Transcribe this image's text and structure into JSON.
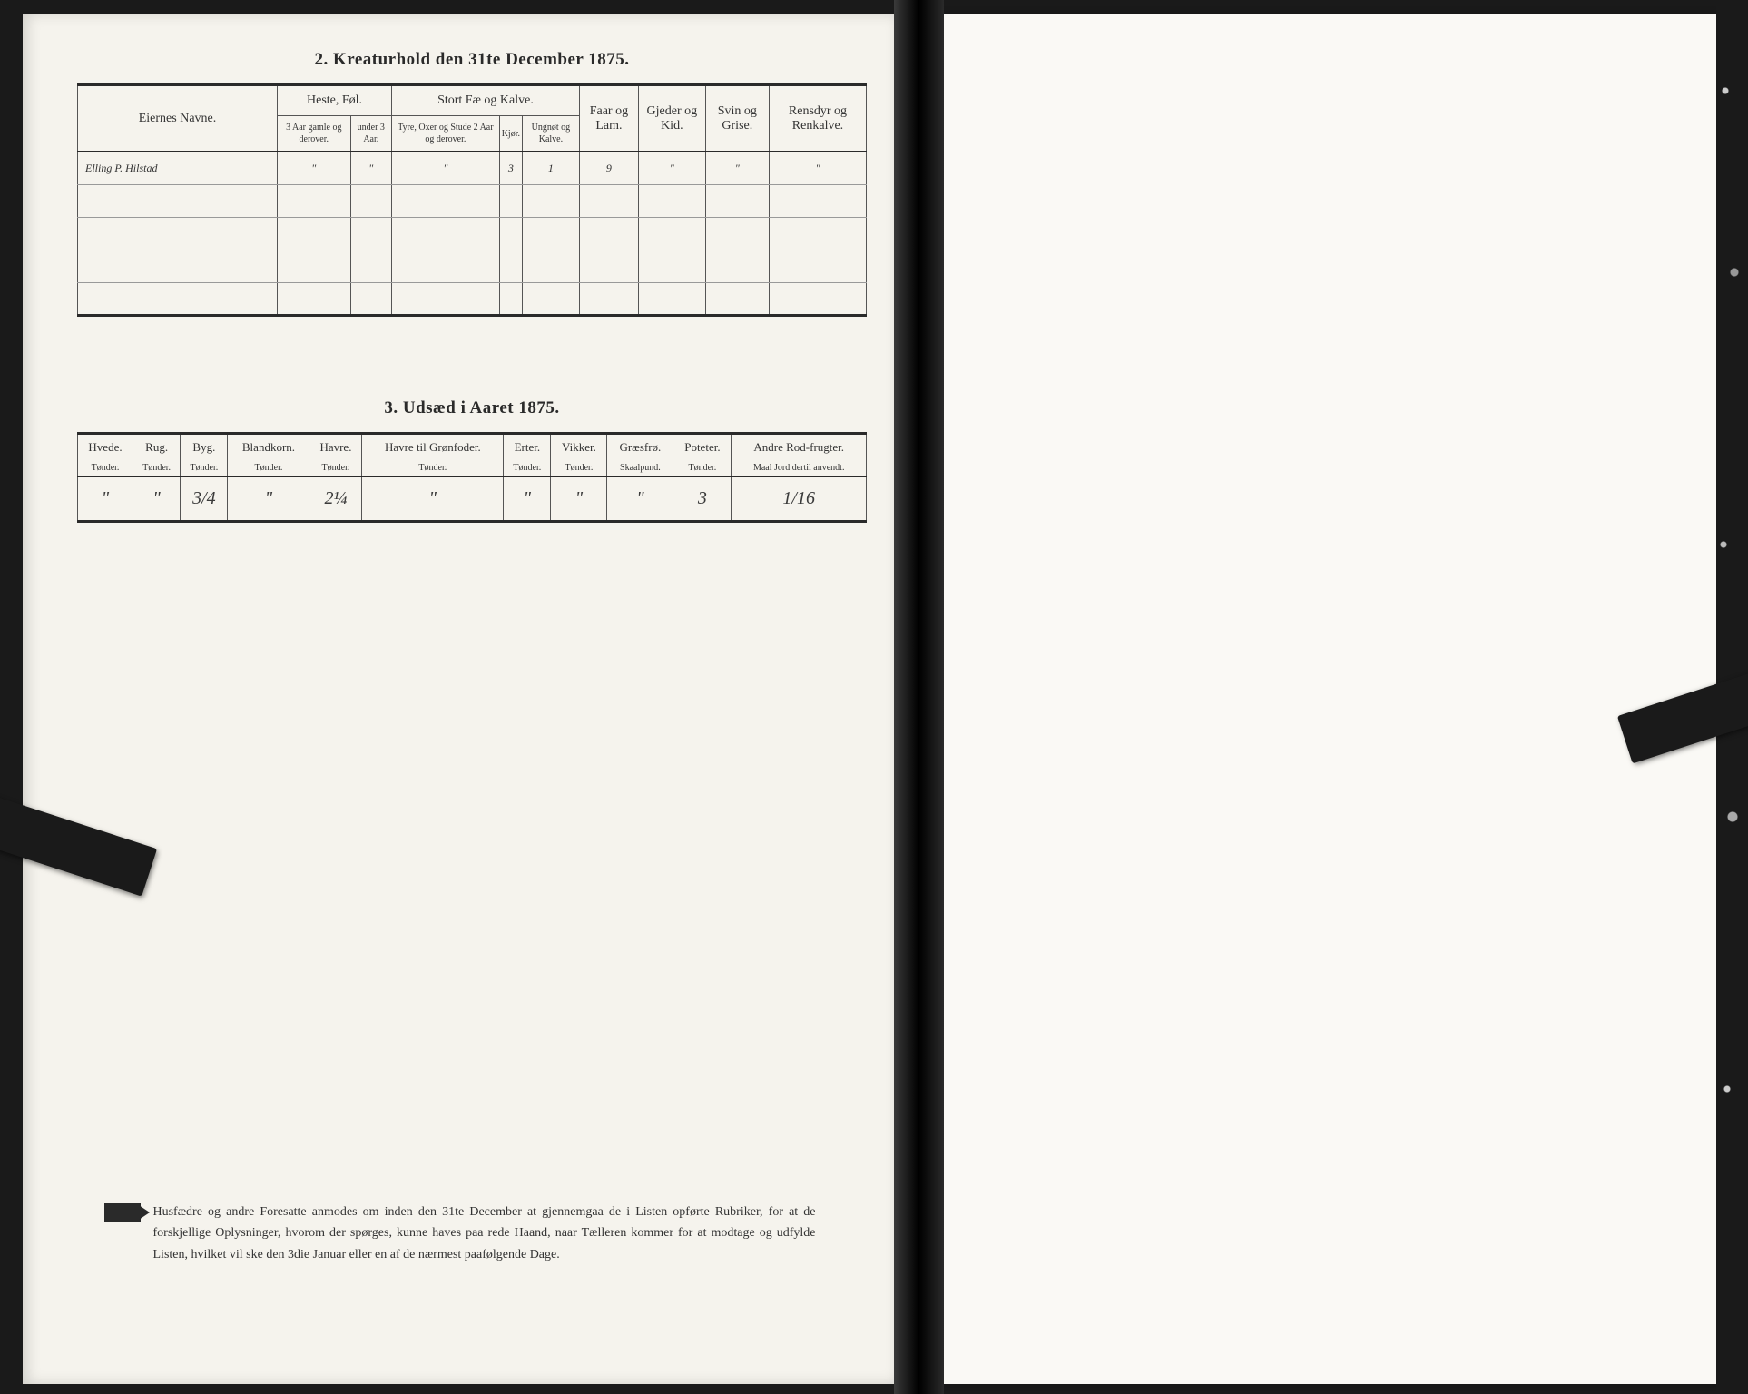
{
  "section1": {
    "title": "2.  Kreaturhold den 31te December 1875.",
    "owner_label": "Eiernes Navne.",
    "groups": {
      "heste": "Heste, Føl.",
      "stort": "Stort Fæ og Kalve.",
      "faar": "Faar og Lam.",
      "gjeder": "Gjeder og Kid.",
      "svin": "Svin og Grise.",
      "rensdyr": "Rensdyr og Renkalve."
    },
    "subheads": {
      "heste_a": "3 Aar gamle og derover.",
      "heste_b": "under 3 Aar.",
      "stort_a": "Tyre, Oxer og Stude 2 Aar og derover.",
      "stort_b": "Kjør.",
      "stort_c": "Ungnøt og Kalve."
    },
    "row": {
      "owner": "Elling P. Hilstad",
      "heste_a": "\"",
      "heste_b": "\"",
      "stort_a": "\"",
      "stort_b": "3",
      "stort_c": "1",
      "faar": "9",
      "gjeder": "\"",
      "svin": "\"",
      "rensdyr": "\""
    }
  },
  "section2": {
    "title": "3.  Udsæd i Aaret 1875.",
    "cols": [
      "Hvede.",
      "Rug.",
      "Byg.",
      "Blandkorn.",
      "Havre.",
      "Havre til Grønfoder.",
      "Erter.",
      "Vikker.",
      "Græsfrø.",
      "Poteter.",
      "Andre Rod-frugter."
    ],
    "units": [
      "Tønder.",
      "Tønder.",
      "Tønder.",
      "Tønder.",
      "Tønder.",
      "Tønder.",
      "Tønder.",
      "Tønder.",
      "Skaalpund.",
      "Tønder.",
      "Maal Jord dertil anvendt."
    ],
    "row": [
      "\"",
      "\"",
      "3/4",
      "\"",
      "2¼",
      "\"",
      "\"",
      "\"",
      "\"",
      "3",
      "1/16"
    ]
  },
  "footer": "Husfædre og andre Foresatte anmodes om inden den 31te December at gjennemgaa de i Listen opførte Rubriker, for at de forskjellige Oplysninger, hvorom der spørges, kunne haves paa rede Haand, naar Tælleren kommer for at modtage og udfylde Listen, hvilket vil ske den 3die Januar eller en af de nærmest paafølgende Dage."
}
